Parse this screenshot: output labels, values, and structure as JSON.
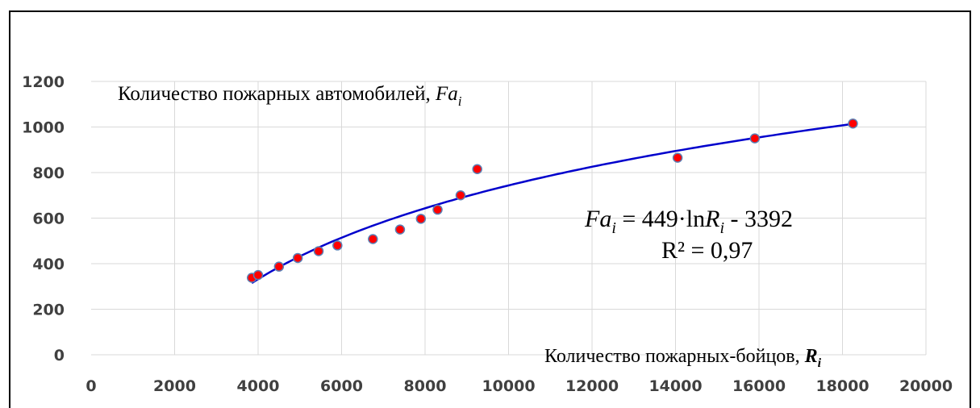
{
  "chart_data": {
    "type": "scatter",
    "title": "",
    "xlabel": "Количество пожарных-бойцов, ",
    "xlabel_sub": "R",
    "xlabel_sub_index": "i",
    "ylabel": "Количество пожарных автомобилей, ",
    "ylabel_var": "Fa",
    "ylabel_var_index": "i",
    "xlim": [
      0,
      20000
    ],
    "ylim": [
      0,
      1200
    ],
    "x_ticks": [
      0,
      2000,
      4000,
      6000,
      8000,
      10000,
      12000,
      14000,
      16000,
      18000,
      20000
    ],
    "y_ticks": [
      0,
      200,
      400,
      600,
      800,
      1000,
      1200
    ],
    "grid": true,
    "colors": {
      "marker_fill": "#ff0000",
      "marker_edge": "#5b7fb4",
      "trendline": "#0000cc"
    },
    "points": [
      {
        "x": 3850,
        "y": 338
      },
      {
        "x": 4000,
        "y": 350
      },
      {
        "x": 4500,
        "y": 387
      },
      {
        "x": 4950,
        "y": 425
      },
      {
        "x": 5450,
        "y": 455
      },
      {
        "x": 5900,
        "y": 480
      },
      {
        "x": 6750,
        "y": 508
      },
      {
        "x": 7400,
        "y": 550
      },
      {
        "x": 7900,
        "y": 597
      },
      {
        "x": 8300,
        "y": 637
      },
      {
        "x": 8850,
        "y": 700
      },
      {
        "x": 9250,
        "y": 815
      },
      {
        "x": 14050,
        "y": 865
      },
      {
        "x": 15900,
        "y": 950
      },
      {
        "x": 18250,
        "y": 1015
      }
    ],
    "trendline": {
      "type": "logarithmic",
      "a": 449,
      "b": -3392,
      "x_range": [
        3850,
        18250
      ],
      "eq_lhs": "Fa",
      "eq_lhs_index": "i",
      "eq_mid": " = 449·ln",
      "eq_var": "R",
      "eq_var_index": "i",
      "eq_rhs": " - 3392",
      "r2_label": "R² = 0,97"
    }
  }
}
